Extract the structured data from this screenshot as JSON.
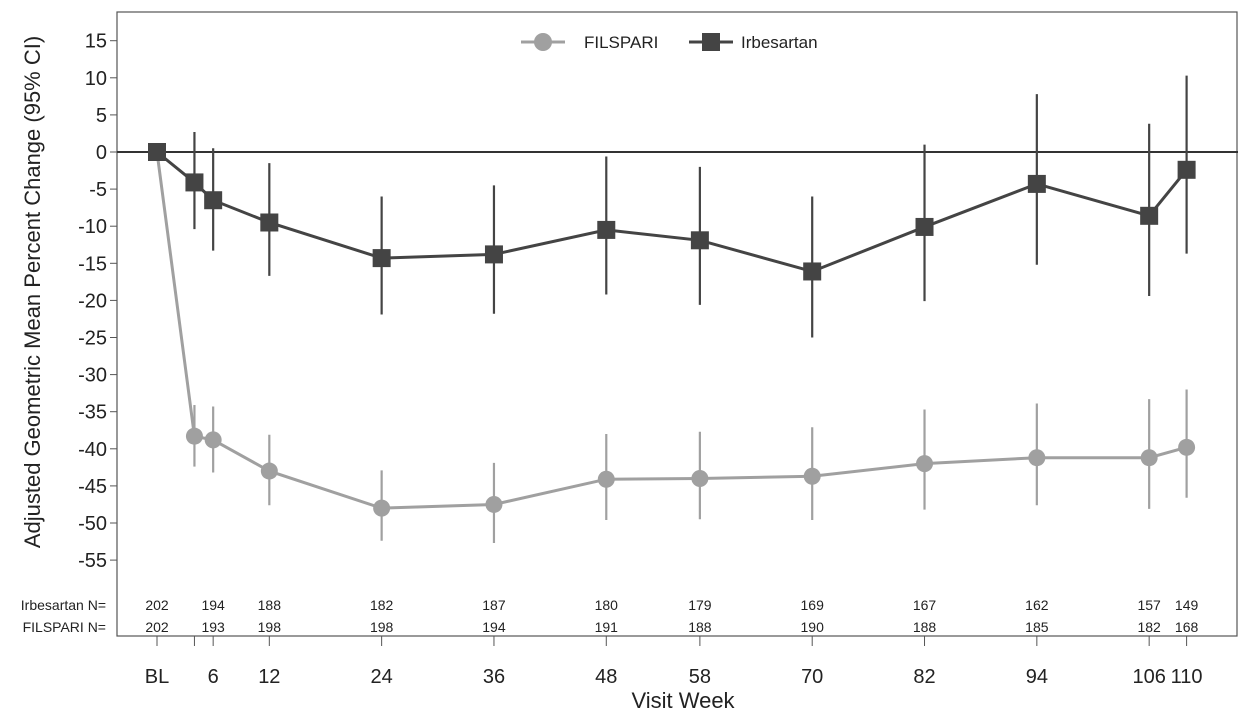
{
  "chart_data": {
    "type": "line",
    "ylabel": "Adjusted Geometric Mean Percent Change (95% CI)",
    "xlabel": "Visit Week",
    "ylim": [
      -60,
      17
    ],
    "yticks": [
      15,
      10,
      5,
      0,
      -5,
      -10,
      -15,
      -20,
      -25,
      -30,
      -35,
      -40,
      -45,
      -50,
      -55
    ],
    "x": [
      0,
      4,
      6,
      12,
      24,
      36,
      48,
      58,
      70,
      82,
      94,
      106,
      110
    ],
    "x_tick_labels": [
      "BL",
      "",
      "6",
      "12",
      "24",
      "36",
      "48",
      "58",
      "70",
      "82",
      "94",
      "106",
      "110"
    ],
    "reference_line_y": 0,
    "legend": {
      "position": "top-center",
      "entries": [
        "FILSPARI",
        "Irbesartan"
      ]
    },
    "series": [
      {
        "name": "FILSPARI",
        "color": "#a0a0a0",
        "marker": "circle",
        "values": [
          0,
          -38.3,
          -38.8,
          -43,
          -48,
          -47.5,
          -44.1,
          -44,
          -43.7,
          -42,
          -41.2,
          -41.2,
          -39.8
        ],
        "ci_lower": [
          0,
          -42.4,
          -43.2,
          -47.6,
          -52.4,
          -52.7,
          -49.6,
          -49.5,
          -49.6,
          -48.2,
          -47.6,
          -48.1,
          -46.6
        ],
        "ci_upper": [
          0,
          -34.1,
          -34.3,
          -38.1,
          -42.9,
          -41.9,
          -38,
          -37.7,
          -37.1,
          -34.7,
          -33.9,
          -33.3,
          -32
        ]
      },
      {
        "name": "Irbesartan",
        "color": "#444444",
        "marker": "square",
        "values": [
          0,
          -4.1,
          -6.5,
          -9.5,
          -14.3,
          -13.8,
          -10.5,
          -11.9,
          -16.1,
          -10.1,
          -4.3,
          -8.6,
          -2.4
        ],
        "ci_lower": [
          0,
          -10.4,
          -13.3,
          -16.7,
          -21.9,
          -21.8,
          -19.2,
          -20.6,
          -25,
          -20.1,
          -15.2,
          -19.4,
          -13.7
        ],
        "ci_upper": [
          0,
          2.7,
          0.5,
          -1.5,
          -6,
          -4.5,
          -0.6,
          -2,
          -6,
          1,
          7.8,
          3.8,
          10.3
        ]
      }
    ],
    "n_table": {
      "rows": [
        {
          "label": "Irbesartan N=",
          "values": [
            "202",
            "194",
            "188",
            "182",
            "187",
            "180",
            "179",
            "169",
            "167",
            "162",
            "157",
            "149"
          ]
        },
        {
          "label": "FILSPARI N=",
          "values": [
            "202",
            "193",
            "198",
            "198",
            "194",
            "191",
            "188",
            "190",
            "188",
            "185",
            "182",
            "168"
          ]
        }
      ],
      "weeks": [
        0,
        6,
        12,
        24,
        36,
        48,
        58,
        70,
        82,
        94,
        106,
        110
      ]
    }
  }
}
